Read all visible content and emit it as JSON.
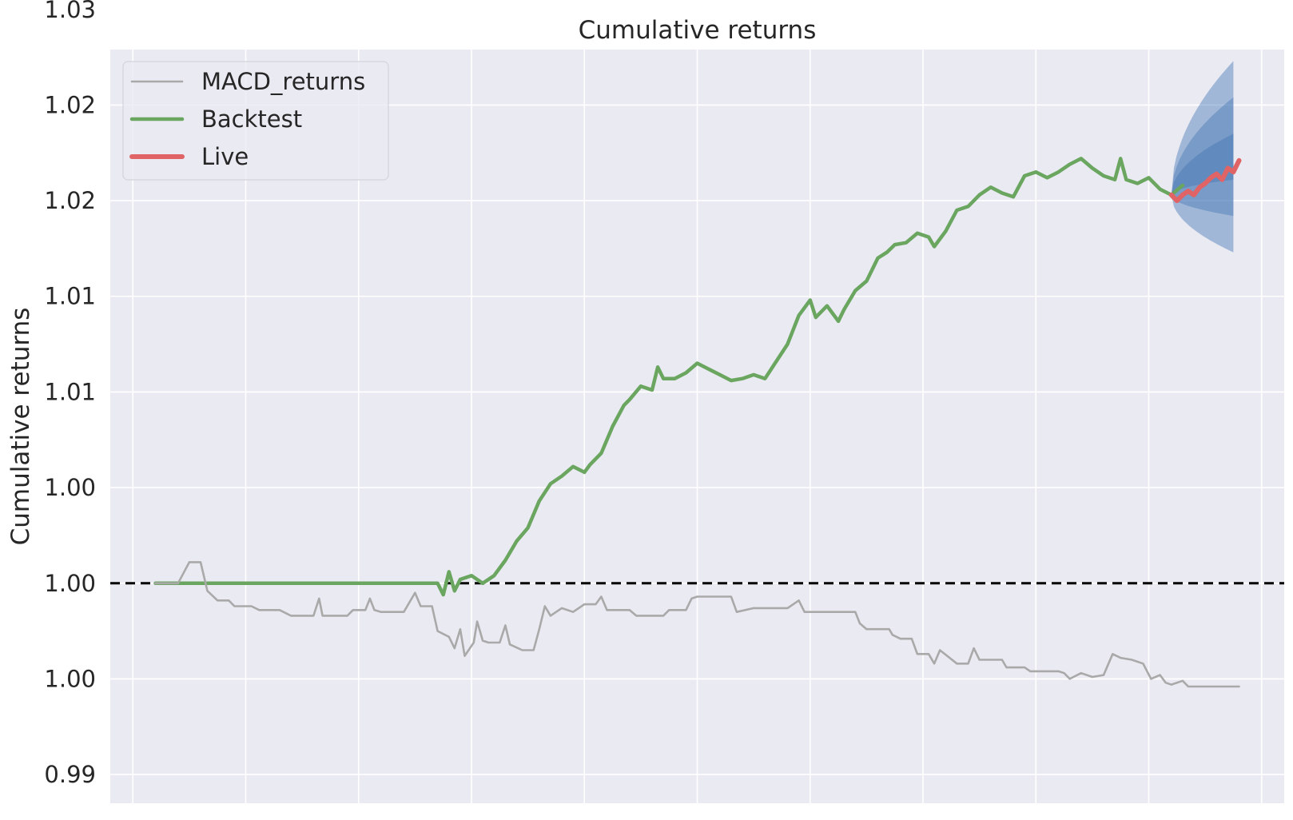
{
  "chart_data": {
    "type": "line",
    "title": "Cumulative returns",
    "ylabel": "Cumulative returns",
    "xlabel": "",
    "ylim": [
      0.9885,
      1.0279
    ],
    "xlim": [
      -4,
      100
    ],
    "yticks": [
      {
        "value": 0.99,
        "label": "0.99"
      },
      {
        "value": 0.995,
        "label": "1.00"
      },
      {
        "value": 1.0,
        "label": "1.00"
      },
      {
        "value": 1.005,
        "label": "1.00"
      },
      {
        "value": 1.01,
        "label": "1.01"
      },
      {
        "value": 1.015,
        "label": "1.01"
      },
      {
        "value": 1.02,
        "label": "1.02"
      },
      {
        "value": 1.025,
        "label": "1.02"
      },
      {
        "value": 1.03,
        "label": "1.03"
      }
    ],
    "xgrid": [
      -2,
      8,
      18,
      28,
      38,
      48,
      58,
      68,
      78,
      88,
      98
    ],
    "grid": true,
    "legend_position": "top-left",
    "baseline": 1.0,
    "series": [
      {
        "name": "MACD_returns",
        "color": "#a9a9a9",
        "points": [
          [
            0,
            1.0
          ],
          [
            2,
            1.0
          ],
          [
            3,
            1.0011
          ],
          [
            4,
            1.0011
          ],
          [
            4.6,
            0.9996
          ],
          [
            5.5,
            0.9991
          ],
          [
            6.5,
            0.9991
          ],
          [
            7,
            0.9988
          ],
          [
            8.5,
            0.9988
          ],
          [
            9.2,
            0.9986
          ],
          [
            11,
            0.9986
          ],
          [
            12,
            0.9983
          ],
          [
            14,
            0.9983
          ],
          [
            14.5,
            0.9992
          ],
          [
            14.8,
            0.9983
          ],
          [
            17,
            0.9983
          ],
          [
            17.5,
            0.9986
          ],
          [
            18.6,
            0.9986
          ],
          [
            19,
            0.9992
          ],
          [
            19.4,
            0.9986
          ],
          [
            20,
            0.9985
          ],
          [
            22,
            0.9985
          ],
          [
            23,
            0.9995
          ],
          [
            23.5,
            0.9988
          ],
          [
            24.5,
            0.9988
          ],
          [
            25,
            0.9975
          ],
          [
            26,
            0.9972
          ],
          [
            26.5,
            0.9966
          ],
          [
            27,
            0.9976
          ],
          [
            27.4,
            0.9962
          ],
          [
            28.2,
            0.9969
          ],
          [
            28.5,
            0.998
          ],
          [
            29,
            0.997
          ],
          [
            29.5,
            0.9969
          ],
          [
            30.5,
            0.9969
          ],
          [
            31,
            0.9978
          ],
          [
            31.4,
            0.9968
          ],
          [
            32.5,
            0.9965
          ],
          [
            33.5,
            0.9965
          ],
          [
            34,
            0.9976
          ],
          [
            34.5,
            0.9988
          ],
          [
            35,
            0.9983
          ],
          [
            36,
            0.9987
          ],
          [
            37,
            0.9985
          ],
          [
            38,
            0.9989
          ],
          [
            39,
            0.9989
          ],
          [
            39.5,
            0.9993
          ],
          [
            40,
            0.9986
          ],
          [
            42,
            0.9986
          ],
          [
            42.6,
            0.9983
          ],
          [
            45,
            0.9983
          ],
          [
            45.5,
            0.9986
          ],
          [
            47,
            0.9986
          ],
          [
            47.5,
            0.9992
          ],
          [
            48,
            0.9993
          ],
          [
            50,
            0.9993
          ],
          [
            51,
            0.9993
          ],
          [
            51.5,
            0.9985
          ],
          [
            53,
            0.9987
          ],
          [
            56,
            0.9987
          ],
          [
            57,
            0.9991
          ],
          [
            57.5,
            0.9985
          ],
          [
            58,
            0.9985
          ],
          [
            59,
            0.9985
          ],
          [
            62,
            0.9985
          ],
          [
            62.4,
            0.9979
          ],
          [
            63,
            0.9976
          ],
          [
            65,
            0.9976
          ],
          [
            65.3,
            0.9973
          ],
          [
            66,
            0.9971
          ],
          [
            67,
            0.9971
          ],
          [
            67.5,
            0.9963
          ],
          [
            68.5,
            0.9963
          ],
          [
            69,
            0.9958
          ],
          [
            69.5,
            0.9965
          ],
          [
            71,
            0.9958
          ],
          [
            72,
            0.9958
          ],
          [
            72.5,
            0.9966
          ],
          [
            73,
            0.996
          ],
          [
            75,
            0.996
          ],
          [
            75.4,
            0.9956
          ],
          [
            77,
            0.9956
          ],
          [
            77.5,
            0.9954
          ],
          [
            78,
            0.9954
          ],
          [
            80,
            0.9954
          ],
          [
            80.5,
            0.9953
          ],
          [
            81,
            0.995
          ],
          [
            82,
            0.9953
          ],
          [
            83,
            0.9951
          ],
          [
            84,
            0.9952
          ],
          [
            84.8,
            0.9963
          ],
          [
            85.5,
            0.9961
          ],
          [
            86.5,
            0.996
          ],
          [
            87.5,
            0.9958
          ],
          [
            88.2,
            0.995
          ],
          [
            89,
            0.9952
          ],
          [
            89.5,
            0.9948
          ],
          [
            90,
            0.9947
          ],
          [
            91,
            0.9949
          ],
          [
            91.5,
            0.9946
          ],
          [
            95,
            0.9946
          ],
          [
            96,
            0.9946
          ]
        ]
      },
      {
        "name": "Backtest",
        "color": "#6aa660",
        "points": [
          [
            0,
            1.0
          ],
          [
            23,
            1.0
          ],
          [
            25,
            1.0
          ],
          [
            25.5,
            0.9994
          ],
          [
            26,
            1.0006
          ],
          [
            26.5,
            0.9996
          ],
          [
            27,
            1.0002
          ],
          [
            28,
            1.0004
          ],
          [
            29,
            1.0
          ],
          [
            30,
            1.0004
          ],
          [
            31,
            1.0012
          ],
          [
            32,
            1.0022
          ],
          [
            33,
            1.0029
          ],
          [
            34,
            1.0043
          ],
          [
            35,
            1.0052
          ],
          [
            36,
            1.0056
          ],
          [
            37,
            1.0061
          ],
          [
            38,
            1.0058
          ],
          [
            38.5,
            1.0062
          ],
          [
            39.5,
            1.0068
          ],
          [
            40.5,
            1.0082
          ],
          [
            41.5,
            1.0093
          ],
          [
            42,
            1.0096
          ],
          [
            43,
            1.0103
          ],
          [
            44,
            1.0101
          ],
          [
            44.5,
            1.0113
          ],
          [
            45,
            1.0107
          ],
          [
            46,
            1.0107
          ],
          [
            47,
            1.011
          ],
          [
            48,
            1.0115
          ],
          [
            49,
            1.0112
          ],
          [
            50,
            1.0109
          ],
          [
            51,
            1.0106
          ],
          [
            52,
            1.0107
          ],
          [
            53,
            1.0109
          ],
          [
            54,
            1.0107
          ],
          [
            55,
            1.0116
          ],
          [
            56,
            1.0125
          ],
          [
            57,
            1.014
          ],
          [
            58,
            1.0148
          ],
          [
            58.5,
            1.0139
          ],
          [
            59.5,
            1.0145
          ],
          [
            60.5,
            1.0137
          ],
          [
            61,
            1.0143
          ],
          [
            62,
            1.0153
          ],
          [
            63,
            1.0158
          ],
          [
            64,
            1.017
          ],
          [
            64.8,
            1.0173
          ],
          [
            65.5,
            1.0177
          ],
          [
            66.5,
            1.0178
          ],
          [
            67.5,
            1.0183
          ],
          [
            68.5,
            1.0181
          ],
          [
            69,
            1.0176
          ],
          [
            70,
            1.0184
          ],
          [
            71,
            1.0195
          ],
          [
            72,
            1.0197
          ],
          [
            73,
            1.0203
          ],
          [
            74,
            1.0207
          ],
          [
            75,
            1.0204
          ],
          [
            76,
            1.0202
          ],
          [
            77,
            1.0213
          ],
          [
            78,
            1.0215
          ],
          [
            79,
            1.0212
          ],
          [
            80,
            1.0215
          ],
          [
            81,
            1.0219
          ],
          [
            82,
            1.0222
          ],
          [
            83,
            1.0217
          ],
          [
            84,
            1.0213
          ],
          [
            85,
            1.0211
          ],
          [
            85.5,
            1.0222
          ],
          [
            86,
            1.0211
          ],
          [
            87,
            1.0209
          ],
          [
            88,
            1.0212
          ],
          [
            89,
            1.0206
          ],
          [
            90,
            1.0203
          ],
          [
            91,
            1.0208
          ]
        ]
      },
      {
        "name": "Live",
        "color": "#e06466",
        "points": [
          [
            90,
            1.0203
          ],
          [
            90.5,
            1.02
          ],
          [
            91,
            1.0203
          ],
          [
            91.5,
            1.0205
          ],
          [
            92,
            1.0203
          ],
          [
            92.5,
            1.0207
          ],
          [
            93,
            1.0209
          ],
          [
            93.5,
            1.0212
          ],
          [
            94,
            1.0214
          ],
          [
            94.5,
            1.0211
          ],
          [
            95,
            1.0217
          ],
          [
            95.5,
            1.0215
          ],
          [
            96,
            1.0221
          ]
        ]
      }
    ],
    "cone": {
      "color": "#4a7ab5",
      "x": [
        90,
        95.5
      ],
      "center": [
        1.0203,
        1.0223
      ],
      "bands": [
        {
          "upper": [
            1.0203,
            1.0235
          ],
          "lower": [
            1.0203,
            1.0211
          ]
        },
        {
          "upper": [
            1.0203,
            1.0254
          ],
          "lower": [
            1.0203,
            1.0192
          ]
        },
        {
          "upper": [
            1.0203,
            1.0273
          ],
          "lower": [
            1.0203,
            1.0173
          ]
        }
      ]
    }
  }
}
